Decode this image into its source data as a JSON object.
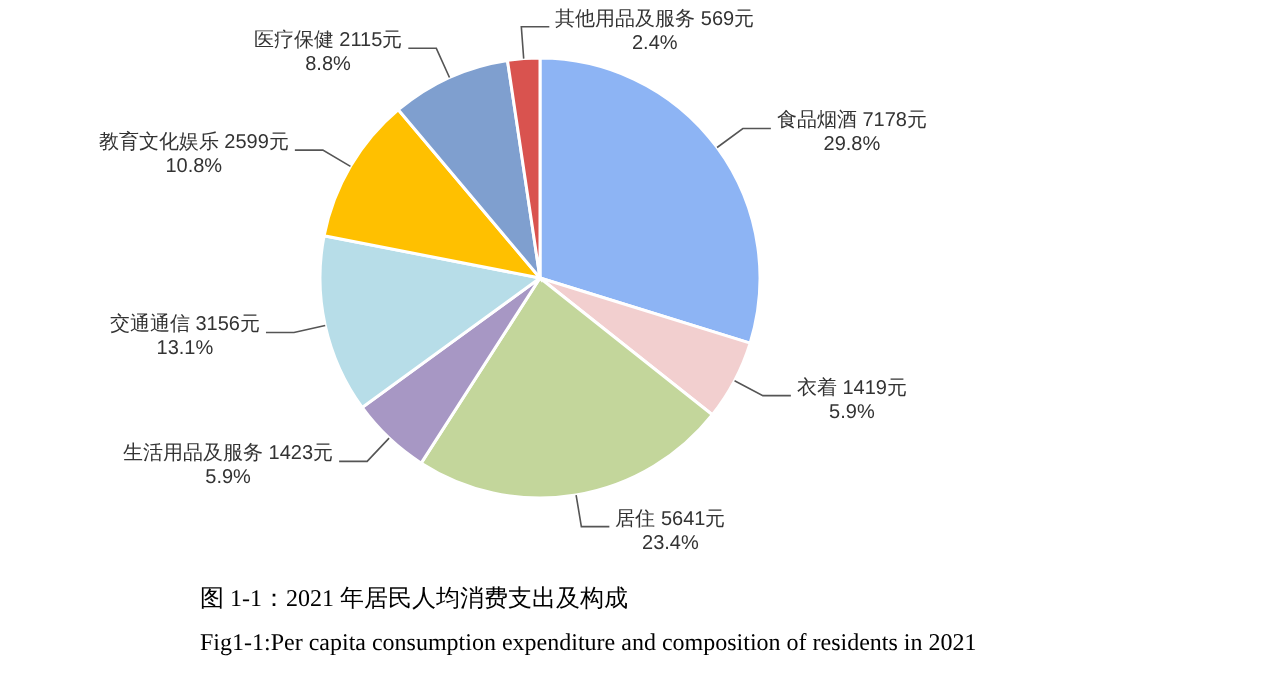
{
  "chart_data": {
    "type": "pie",
    "categories": [
      "食品烟酒",
      "衣着",
      "居住",
      "生活用品及服务",
      "交通通信",
      "教育文化娱乐",
      "医疗保健",
      "其他用品及服务"
    ],
    "values": [
      7178,
      1419,
      5641,
      1423,
      3156,
      2599,
      2115,
      569
    ],
    "colors": [
      "#8db4f4",
      "#f2cfcf",
      "#c3d69b",
      "#a797c4",
      "#b7dde8",
      "#ffc000",
      "#7f9fcf",
      "#d9534f"
    ],
    "value_labels": [
      "7178元\n29.8%",
      "1419元\n5.9%",
      "5641元\n23.4%",
      "1423元\n5.9%",
      "3156元\n13.1%",
      "2599元\n10.8%",
      "2115元\n8.8%",
      "569元\n2.4%"
    ],
    "annotations": [
      "图 1-1：2021 年居民人均消费支出及构成",
      "Fig1-1:Per capita consumption expenditure and composition of residents in 2021"
    ]
  }
}
